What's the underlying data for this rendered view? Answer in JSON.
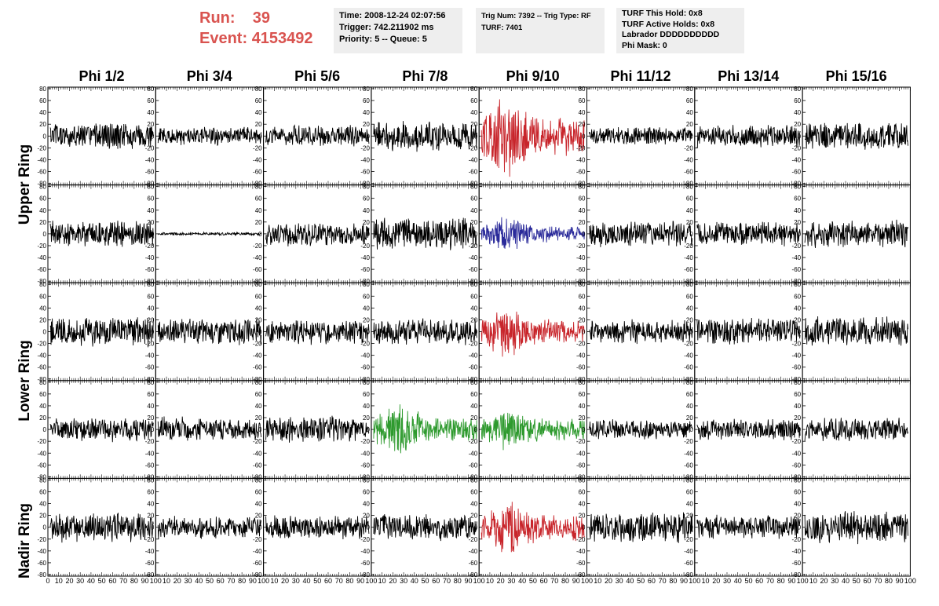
{
  "header": {
    "run_label": "Run:",
    "run_value": "39",
    "event_label": "Event:",
    "event_value": "4153492"
  },
  "info": {
    "box1": [
      "Time: 2008-12-24 02:07:56",
      "Trigger: 742.211902 ms",
      "Priority: 5 -- Queue: 5"
    ],
    "box2": [
      "Trig Num: 7392 -- Trig Type: RF",
      "",
      "TURF: 7401"
    ],
    "box3": [
      "TURF This Hold: 0x8",
      "TURF Active Holds: 0x8",
      "Labrador DDDDDDDDDD",
      "Phi Mask: 0"
    ]
  },
  "column_headers": [
    "Phi 1/2",
    "Phi 3/4",
    "Phi 5/6",
    "Phi 7/8",
    "Phi 9/10",
    "Phi 11/12",
    "Phi 13/14",
    "Phi 15/16"
  ],
  "row_headers": [
    "Upper Ring",
    "Lower Ring",
    "Nadir Ring"
  ],
  "colors": {
    "red": "#c8252b",
    "blue": "#2a2a9a",
    "green": "#2e9a2e",
    "default": "#000000",
    "header_red": "#d9534f"
  },
  "chart_data": {
    "type": "line",
    "grid_rows": 5,
    "grid_cols": 8,
    "xlim": [
      0,
      100
    ],
    "ylim": [
      -80,
      80
    ],
    "yticks": [
      80,
      60,
      40,
      20,
      0,
      -20,
      -40,
      -60,
      -80
    ],
    "xticks": [
      0,
      10,
      20,
      30,
      40,
      50,
      60,
      70,
      80,
      90,
      100
    ],
    "panels": [
      {
        "row": 0,
        "col": 0,
        "color": "black",
        "amplitude": 18
      },
      {
        "row": 0,
        "col": 1,
        "color": "black",
        "amplitude": 12
      },
      {
        "row": 0,
        "col": 2,
        "color": "black",
        "amplitude": 14
      },
      {
        "row": 0,
        "col": 3,
        "color": "black",
        "amplitude": 20
      },
      {
        "row": 0,
        "col": 4,
        "color": "red",
        "amplitude": 40
      },
      {
        "row": 0,
        "col": 5,
        "color": "black",
        "amplitude": 12
      },
      {
        "row": 0,
        "col": 6,
        "color": "black",
        "amplitude": 15
      },
      {
        "row": 0,
        "col": 7,
        "color": "black",
        "amplitude": 18
      },
      {
        "row": 1,
        "col": 0,
        "color": "black",
        "amplitude": 18
      },
      {
        "row": 1,
        "col": 1,
        "color": "black",
        "amplitude": 2
      },
      {
        "row": 1,
        "col": 2,
        "color": "black",
        "amplitude": 16
      },
      {
        "row": 1,
        "col": 3,
        "color": "black",
        "amplitude": 22
      },
      {
        "row": 1,
        "col": 4,
        "color": "blue",
        "amplitude": 17
      },
      {
        "row": 1,
        "col": 5,
        "color": "black",
        "amplitude": 18
      },
      {
        "row": 1,
        "col": 6,
        "color": "black",
        "amplitude": 16
      },
      {
        "row": 1,
        "col": 7,
        "color": "black",
        "amplitude": 18
      },
      {
        "row": 2,
        "col": 0,
        "color": "black",
        "amplitude": 20
      },
      {
        "row": 2,
        "col": 1,
        "color": "black",
        "amplitude": 17
      },
      {
        "row": 2,
        "col": 2,
        "color": "black",
        "amplitude": 17
      },
      {
        "row": 2,
        "col": 3,
        "color": "black",
        "amplitude": 18
      },
      {
        "row": 2,
        "col": 4,
        "color": "red",
        "amplitude": 26
      },
      {
        "row": 2,
        "col": 5,
        "color": "black",
        "amplitude": 16
      },
      {
        "row": 2,
        "col": 6,
        "color": "black",
        "amplitude": 18
      },
      {
        "row": 2,
        "col": 7,
        "color": "black",
        "amplitude": 20
      },
      {
        "row": 3,
        "col": 0,
        "color": "black",
        "amplitude": 16
      },
      {
        "row": 3,
        "col": 1,
        "color": "black",
        "amplitude": 17
      },
      {
        "row": 3,
        "col": 2,
        "color": "black",
        "amplitude": 18
      },
      {
        "row": 3,
        "col": 3,
        "color": "green",
        "amplitude": 25
      },
      {
        "row": 3,
        "col": 4,
        "color": "green",
        "amplitude": 22
      },
      {
        "row": 3,
        "col": 5,
        "color": "black",
        "amplitude": 13
      },
      {
        "row": 3,
        "col": 6,
        "color": "black",
        "amplitude": 14
      },
      {
        "row": 3,
        "col": 7,
        "color": "black",
        "amplitude": 16
      },
      {
        "row": 4,
        "col": 0,
        "color": "black",
        "amplitude": 20
      },
      {
        "row": 4,
        "col": 1,
        "color": "black",
        "amplitude": 15
      },
      {
        "row": 4,
        "col": 2,
        "color": "black",
        "amplitude": 16
      },
      {
        "row": 4,
        "col": 3,
        "color": "black",
        "amplitude": 18
      },
      {
        "row": 4,
        "col": 4,
        "color": "red",
        "amplitude": 28
      },
      {
        "row": 4,
        "col": 5,
        "color": "black",
        "amplitude": 20
      },
      {
        "row": 4,
        "col": 6,
        "color": "black",
        "amplitude": 17
      },
      {
        "row": 4,
        "col": 7,
        "color": "black",
        "amplitude": 22
      }
    ]
  }
}
